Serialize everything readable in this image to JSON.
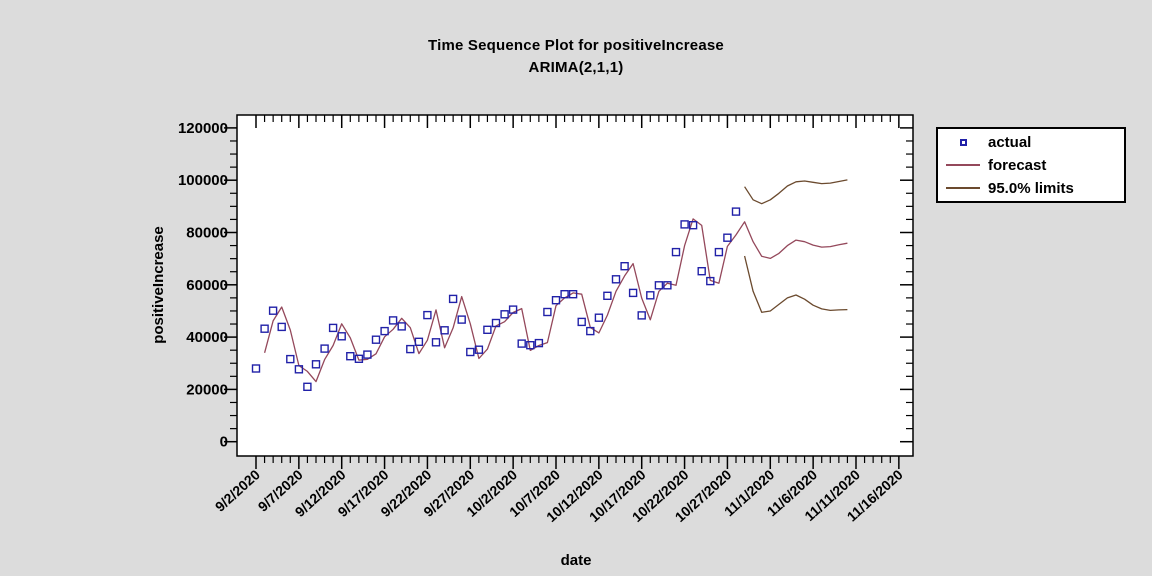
{
  "page": {
    "background": "#dcdcdc",
    "plot_background": "#ffffff",
    "frame_color": "#000000"
  },
  "chart_data": {
    "type": "line",
    "title": "Time Sequence Plot for positiveIncrease",
    "subtitle": "ARIMA(2,1,1)",
    "xlabel": "date",
    "ylabel": "positiveIncrease",
    "ylim": [
      0,
      120000
    ],
    "y_major_step": 20000,
    "y_minor_step": 5000,
    "y_tick_labels": [
      "0",
      "20000",
      "40000",
      "60000",
      "80000",
      "100000",
      "120000"
    ],
    "x_tick_step_days": 5,
    "x_minor_step_days": 1,
    "x_tick_labels": [
      "9/2/2020",
      "9/7/2020",
      "9/12/2020",
      "9/17/2020",
      "9/22/2020",
      "9/27/2020",
      "10/2/2020",
      "10/7/2020",
      "10/12/2020",
      "10/17/2020",
      "10/22/2020",
      "10/27/2020",
      "11/1/2020",
      "11/6/2020",
      "11/11/2020",
      "11/16/2020"
    ],
    "grid": "off",
    "legend_position": "outside-right",
    "legend": [
      {
        "label": "actual",
        "swatch": "square",
        "color": "#2121a8"
      },
      {
        "label": "forecast",
        "swatch": "line",
        "color": "#94485b"
      },
      {
        "label": "95.0% limits",
        "swatch": "line",
        "color": "#6b4a2e"
      }
    ],
    "series": [
      {
        "name": "actual",
        "draw": "points",
        "marker": "open-square",
        "color": "#2121a8",
        "start_day": 0,
        "values": [
          28000,
          43200,
          50100,
          43900,
          31600,
          27700,
          21000,
          29600,
          35600,
          43500,
          40300,
          32700,
          31700,
          33300,
          39000,
          42300,
          46400,
          44100,
          35400,
          38200,
          48400,
          38000,
          42600,
          54600,
          46700,
          34300,
          35200,
          42800,
          45400,
          48700,
          50500,
          37500,
          36900,
          37700,
          49600,
          54100,
          56400,
          56400,
          45800,
          42300,
          47400,
          55800,
          62100,
          67100,
          56900,
          48300,
          56000,
          59800,
          59800,
          72500,
          83100,
          82800,
          65200,
          61400,
          72500,
          78000,
          88000
        ]
      },
      {
        "name": "forecast",
        "draw": "line",
        "color": "#94485b",
        "start_day": 1,
        "values": [
          34000,
          46200,
          51500,
          42700,
          29100,
          26900,
          23000,
          31400,
          36800,
          45100,
          39700,
          31200,
          31500,
          33600,
          40100,
          43000,
          47200,
          43600,
          33700,
          38800,
          50400,
          35900,
          43500,
          55500,
          45100,
          31800,
          35400,
          44300,
          45900,
          49400,
          50900,
          34900,
          36800,
          37900,
          52000,
          55000,
          56900,
          56400,
          43700,
          41600,
          48400,
          57500,
          63400,
          68100,
          54900,
          46600,
          57500,
          60600,
          59800,
          75000,
          85200,
          82700,
          61700,
          60600,
          74700,
          79100,
          84100,
          76500,
          70900,
          70100,
          72000,
          75000,
          77100,
          76500,
          75200,
          74400,
          74600,
          75300,
          75900
        ]
      },
      {
        "name": "95.0% limits upper",
        "draw": "line",
        "color": "#6b4a2e",
        "start_day": 57,
        "values": [
          97500,
          92500,
          91000,
          92500,
          95000,
          97800,
          99400,
          99700,
          99200,
          98700,
          98900,
          99500,
          100100
        ]
      },
      {
        "name": "95.0% limits lower",
        "draw": "line",
        "color": "#6b4a2e",
        "start_day": 57,
        "values": [
          71000,
          57500,
          49500,
          50000,
          52500,
          55000,
          56100,
          54500,
          52200,
          50800,
          50200,
          50400,
          50500
        ]
      }
    ]
  }
}
